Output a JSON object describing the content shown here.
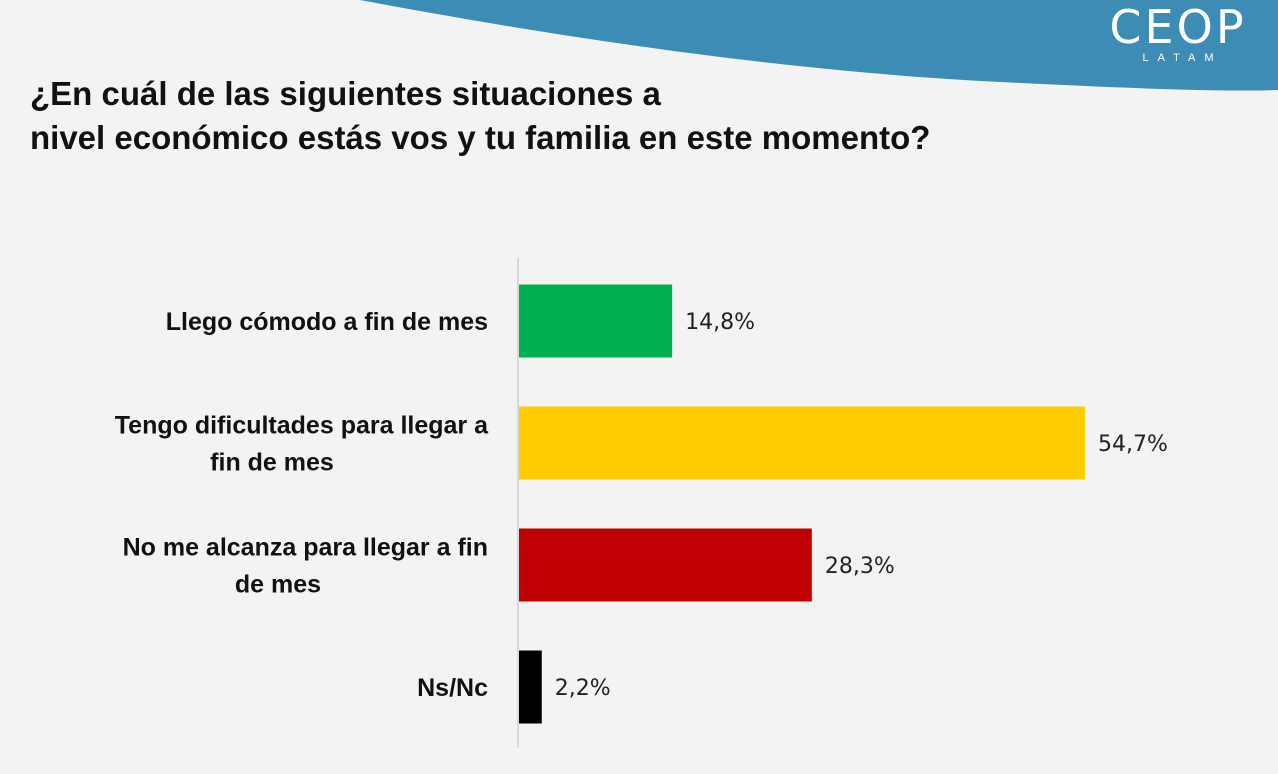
{
  "logo": {
    "main": "CEOP",
    "sub": "LATAM"
  },
  "title_lines": [
    "¿En cuál de las siguientes situaciones a",
    "nivel económico estás vos y tu familia en este momento?"
  ],
  "colors": {
    "header_wave": "#3d8cb6",
    "background": "#f3f3f3",
    "axis": "#d0d0d0"
  },
  "chart_data": {
    "type": "bar",
    "orientation": "horizontal",
    "title": "¿En cuál de las siguientes situaciones a nivel económico estás vos y tu familia en este momento?",
    "unit": "%",
    "xlim": [
      0,
      60
    ],
    "grid": false,
    "legend": "none",
    "categories": [
      {
        "lines": [
          "Llego cómodo a fin de mes"
        ],
        "value": 14.8,
        "label": "14,8%",
        "color": "#00b050"
      },
      {
        "lines": [
          "Tengo dificultades para llegar a",
          "fin de mes"
        ],
        "value": 54.7,
        "label": "54,7%",
        "color": "#ffcc00"
      },
      {
        "lines": [
          "No me alcanza para llegar a fin",
          "de mes"
        ],
        "value": 28.3,
        "label": "28,3%",
        "color": "#c00000"
      },
      {
        "lines": [
          "Ns/Nc"
        ],
        "value": 2.2,
        "label": "2,2%",
        "color": "#000000"
      }
    ]
  }
}
